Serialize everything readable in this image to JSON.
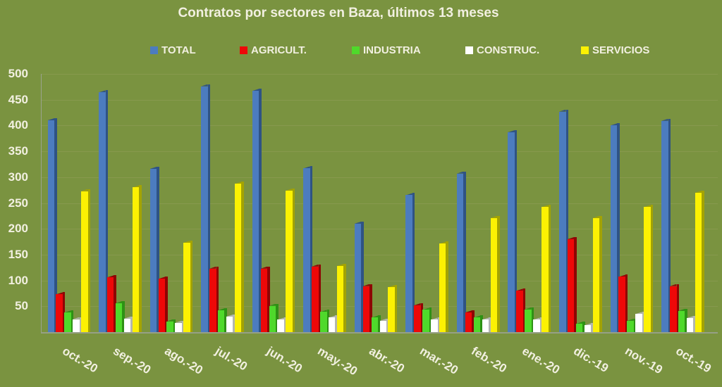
{
  "title": "Contratos por sectores en Baza, últimos 13 meses",
  "colors": {
    "background": "#7A9340",
    "text": "#F2F0E1",
    "gridline": "#87994E",
    "axis_line": "#9AA48D",
    "baseline": "#96A086"
  },
  "chart_data": {
    "type": "bar",
    "title": "Contratos por sectores en Baza, últimos 13 meses",
    "categories": [
      "oct.-20",
      "sep.-20",
      "ago.-20",
      "jul.-20",
      "jun.-20",
      "may.-20",
      "abr.-20",
      "mar.-20",
      "feb.-20",
      "ene.-20",
      "dic.-19",
      "nov.-19",
      "oct.-19"
    ],
    "series": [
      {
        "name": "TOTAL",
        "color": "#4C7CBF",
        "side_color": "#2F5384",
        "values": [
          410,
          464,
          316,
          476,
          467,
          317,
          210,
          265,
          307,
          387,
          427,
          400,
          409
        ]
      },
      {
        "name": "AGRICULT.",
        "color": "#EE0808",
        "side_color": "#8F0404",
        "values": [
          73,
          106,
          103,
          123,
          123,
          127,
          89,
          52,
          38,
          80,
          180,
          107,
          89
        ]
      },
      {
        "name": "INDUSTRIA",
        "color": "#4FD92B",
        "side_color": "#2E9114",
        "values": [
          38,
          56,
          21,
          42,
          51,
          39,
          28,
          43,
          28,
          44,
          16,
          22,
          41
        ]
      },
      {
        "name": "CONSTRUC.",
        "color": "#FFFFFF",
        "side_color": "#B3B6AE",
        "values": [
          25,
          26,
          18,
          30,
          24,
          28,
          22,
          24,
          24,
          24,
          13,
          35,
          27
        ]
      },
      {
        "name": "SERVICIOS",
        "color": "#FCF103",
        "side_color": "#A3A303",
        "values": [
          273,
          280,
          173,
          287,
          274,
          128,
          87,
          171,
          221,
          242,
          221,
          242,
          270
        ]
      }
    ],
    "ylim": [
      0,
      500
    ],
    "ytick_step": 50,
    "grid": true,
    "legend_position": "top"
  }
}
